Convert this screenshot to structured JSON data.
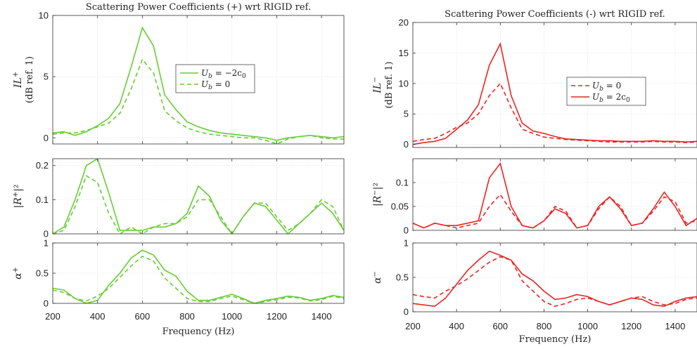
{
  "chart_data": [
    {
      "panel_id": "left",
      "type": "line",
      "title": "Scattering Power Coefficients (+) wrt RIGID ref.",
      "xlabel": "Frequency (Hz)",
      "xlim": [
        200,
        1500
      ],
      "xticks": [
        200,
        400,
        600,
        800,
        1000,
        1200,
        1400
      ],
      "xtick_labels": [
        "200",
        "400",
        "600",
        "800",
        "1000",
        "1200",
        "1400"
      ],
      "color": "#66cc33",
      "x": [
        200,
        250,
        300,
        350,
        400,
        450,
        500,
        550,
        600,
        650,
        700,
        750,
        800,
        850,
        900,
        950,
        1000,
        1050,
        1100,
        1150,
        1200,
        1250,
        1300,
        1350,
        1400,
        1450,
        1500
      ],
      "legend": {
        "position": "upper-right",
        "entries": [
          {
            "label_tex": "U",
            "label_sub": "b",
            "label_rest": " = −2c",
            "label_sub2": "0",
            "dash": "solid"
          },
          {
            "label_tex": "U",
            "label_sub": "b",
            "label_rest": " = 0",
            "label_sub2": "",
            "dash": "dashed"
          }
        ]
      },
      "subplots": [
        {
          "ylabel_main": "IL",
          "ylabel_sup": "+",
          "ylabel_second": "(dB ref. 1)",
          "ylim": [
            -0.5,
            10
          ],
          "yticks": [
            0,
            5,
            10
          ],
          "ytick_labels": [
            "0",
            "5",
            "10"
          ],
          "series": [
            {
              "style": "solid",
              "values": [
                0.4,
                0.5,
                0.2,
                0.5,
                1.0,
                1.6,
                2.8,
                5.8,
                9.0,
                7.5,
                3.5,
                2.3,
                1.3,
                0.9,
                0.6,
                0.4,
                0.3,
                0.2,
                0.1,
                0.0,
                -0.2,
                0.0,
                0.1,
                0.2,
                0.1,
                0.0,
                0.1
              ]
            },
            {
              "style": "dashed",
              "values": [
                0.3,
                0.4,
                0.4,
                0.6,
                0.9,
                1.2,
                2.0,
                4.0,
                6.4,
                5.3,
                2.2,
                1.4,
                0.8,
                0.5,
                0.3,
                0.2,
                0.1,
                0.0,
                0.0,
                -0.2,
                -0.5,
                -0.1,
                0.1,
                0.2,
                0.0,
                -0.1,
                -0.1
              ]
            }
          ]
        },
        {
          "ylabel_main": "|R",
          "ylabel_sup": "+",
          "ylabel_rest": "|²",
          "ylim": [
            0,
            0.22
          ],
          "yticks": [
            0,
            0.1,
            0.2
          ],
          "ytick_labels": [
            "0",
            "0.1",
            "0.2"
          ],
          "series": [
            {
              "style": "solid",
              "values": [
                0.0,
                0.02,
                0.1,
                0.2,
                0.22,
                0.12,
                0.01,
                0.01,
                0.01,
                0.02,
                0.02,
                0.03,
                0.06,
                0.14,
                0.11,
                0.04,
                0.0,
                0.05,
                0.09,
                0.08,
                0.04,
                0.0,
                0.03,
                0.06,
                0.09,
                0.06,
                0.01
              ]
            },
            {
              "style": "dashed",
              "values": [
                0.0,
                0.01,
                0.08,
                0.17,
                0.15,
                0.06,
                0.0,
                0.02,
                0.0,
                0.02,
                0.03,
                0.03,
                0.05,
                0.1,
                0.1,
                0.05,
                0.0,
                0.05,
                0.09,
                0.09,
                0.05,
                0.01,
                0.03,
                0.06,
                0.1,
                0.08,
                0.01
              ]
            }
          ]
        },
        {
          "ylabel_main": "α",
          "ylabel_sup": "+",
          "ylim": [
            0,
            1
          ],
          "yticks": [
            0,
            0.5,
            1
          ],
          "ytick_labels": [
            "0",
            "0.5",
            "1"
          ],
          "series": [
            {
              "style": "solid",
              "values": [
                0.25,
                0.22,
                0.08,
                0.0,
                0.05,
                0.3,
                0.5,
                0.75,
                0.88,
                0.8,
                0.55,
                0.45,
                0.2,
                0.05,
                0.05,
                0.1,
                0.15,
                0.08,
                0.0,
                0.05,
                0.08,
                0.12,
                0.1,
                0.05,
                0.08,
                0.13,
                0.1
              ]
            },
            {
              "style": "dashed",
              "values": [
                0.22,
                0.18,
                0.08,
                0.04,
                0.12,
                0.25,
                0.43,
                0.62,
                0.78,
                0.7,
                0.42,
                0.25,
                0.08,
                0.03,
                0.03,
                0.08,
                0.12,
                0.06,
                0.0,
                0.03,
                0.06,
                0.1,
                0.09,
                0.04,
                0.06,
                0.12,
                0.08
              ]
            }
          ]
        }
      ]
    },
    {
      "panel_id": "right",
      "type": "line",
      "title": "Scattering Power Coefficients (-) wrt RIGID ref.",
      "xlabel": "Frequency (Hz)",
      "xlim": [
        200,
        1500
      ],
      "xticks": [
        200,
        400,
        600,
        800,
        1000,
        1200,
        1400
      ],
      "xtick_labels": [
        "200",
        "400",
        "600",
        "800",
        "1000",
        "1200",
        "1400"
      ],
      "color": "#ee2222",
      "x": [
        200,
        250,
        300,
        350,
        400,
        450,
        500,
        550,
        600,
        650,
        700,
        750,
        800,
        850,
        900,
        950,
        1000,
        1050,
        1100,
        1150,
        1200,
        1250,
        1300,
        1350,
        1400,
        1450,
        1500
      ],
      "legend": {
        "position": "center-right",
        "entries": [
          {
            "label_tex": "U",
            "label_sub": "b",
            "label_rest": " = 0",
            "label_sub2": "",
            "dash": "dashed"
          },
          {
            "label_tex": "U",
            "label_sub": "b",
            "label_rest": " = 2c",
            "label_sub2": "0",
            "dash": "solid"
          }
        ]
      },
      "subplots": [
        {
          "ylabel_main": "IL",
          "ylabel_sup": "−",
          "ylabel_second": "(dB ref. 1)",
          "ylim": [
            -0.5,
            20
          ],
          "yticks": [
            0,
            5,
            10,
            15,
            20
          ],
          "ytick_labels": [
            "0",
            "5",
            "10",
            "15",
            "20"
          ],
          "series": [
            {
              "style": "dashed",
              "values": [
                0.5,
                0.8,
                1.0,
                1.8,
                2.8,
                3.5,
                5.0,
                8.0,
                10.0,
                6.0,
                2.5,
                1.8,
                1.2,
                1.0,
                0.8,
                0.7,
                0.6,
                0.5,
                0.4,
                0.4,
                0.4,
                0.4,
                0.5,
                0.4,
                0.4,
                0.3,
                0.4
              ]
            },
            {
              "style": "solid",
              "values": [
                0.0,
                0.3,
                0.5,
                1.0,
                2.5,
                4.0,
                6.5,
                13.0,
                16.5,
                8.0,
                3.5,
                2.2,
                1.8,
                1.3,
                0.9,
                0.8,
                0.7,
                0.6,
                0.6,
                0.5,
                0.5,
                0.5,
                0.6,
                0.5,
                0.5,
                0.4,
                0.5
              ]
            }
          ]
        },
        {
          "ylabel_main": "|R",
          "ylabel_sup": "−",
          "ylabel_rest": "|²",
          "ylim": [
            0,
            0.15
          ],
          "yticks": [
            0,
            0.05,
            0.1
          ],
          "ytick_labels": [
            "0",
            "0.05",
            "0.1"
          ],
          "series": [
            {
              "style": "dashed",
              "values": [
                0.015,
                0.005,
                0.015,
                0.01,
                0.005,
                0.01,
                0.015,
                0.05,
                0.075,
                0.04,
                0.01,
                0.005,
                0.02,
                0.05,
                0.04,
                0.005,
                0.01,
                0.045,
                0.07,
                0.05,
                0.01,
                0.015,
                0.04,
                0.07,
                0.06,
                0.015,
                0.02
              ]
            },
            {
              "style": "solid",
              "values": [
                0.015,
                0.005,
                0.015,
                0.01,
                0.01,
                0.015,
                0.02,
                0.11,
                0.14,
                0.05,
                0.01,
                0.005,
                0.02,
                0.045,
                0.035,
                0.005,
                0.01,
                0.05,
                0.07,
                0.045,
                0.01,
                0.015,
                0.045,
                0.08,
                0.05,
                0.01,
                0.025
              ]
            }
          ]
        },
        {
          "ylabel_main": "α",
          "ylabel_sup": "−",
          "ylim": [
            0,
            1
          ],
          "yticks": [
            0,
            0.5,
            1
          ],
          "ytick_labels": [
            "0",
            "0.5",
            "1"
          ],
          "series": [
            {
              "style": "dashed",
              "values": [
                0.25,
                0.22,
                0.2,
                0.3,
                0.38,
                0.48,
                0.6,
                0.72,
                0.8,
                0.75,
                0.45,
                0.3,
                0.15,
                0.08,
                0.12,
                0.18,
                0.2,
                0.15,
                0.1,
                0.15,
                0.2,
                0.22,
                0.15,
                0.1,
                0.12,
                0.18,
                0.2
              ]
            },
            {
              "style": "solid",
              "values": [
                0.12,
                0.1,
                0.08,
                0.2,
                0.4,
                0.6,
                0.75,
                0.88,
                0.82,
                0.75,
                0.55,
                0.45,
                0.3,
                0.18,
                0.2,
                0.25,
                0.22,
                0.15,
                0.1,
                0.15,
                0.2,
                0.18,
                0.1,
                0.08,
                0.15,
                0.2,
                0.22
              ]
            }
          ]
        }
      ]
    }
  ]
}
